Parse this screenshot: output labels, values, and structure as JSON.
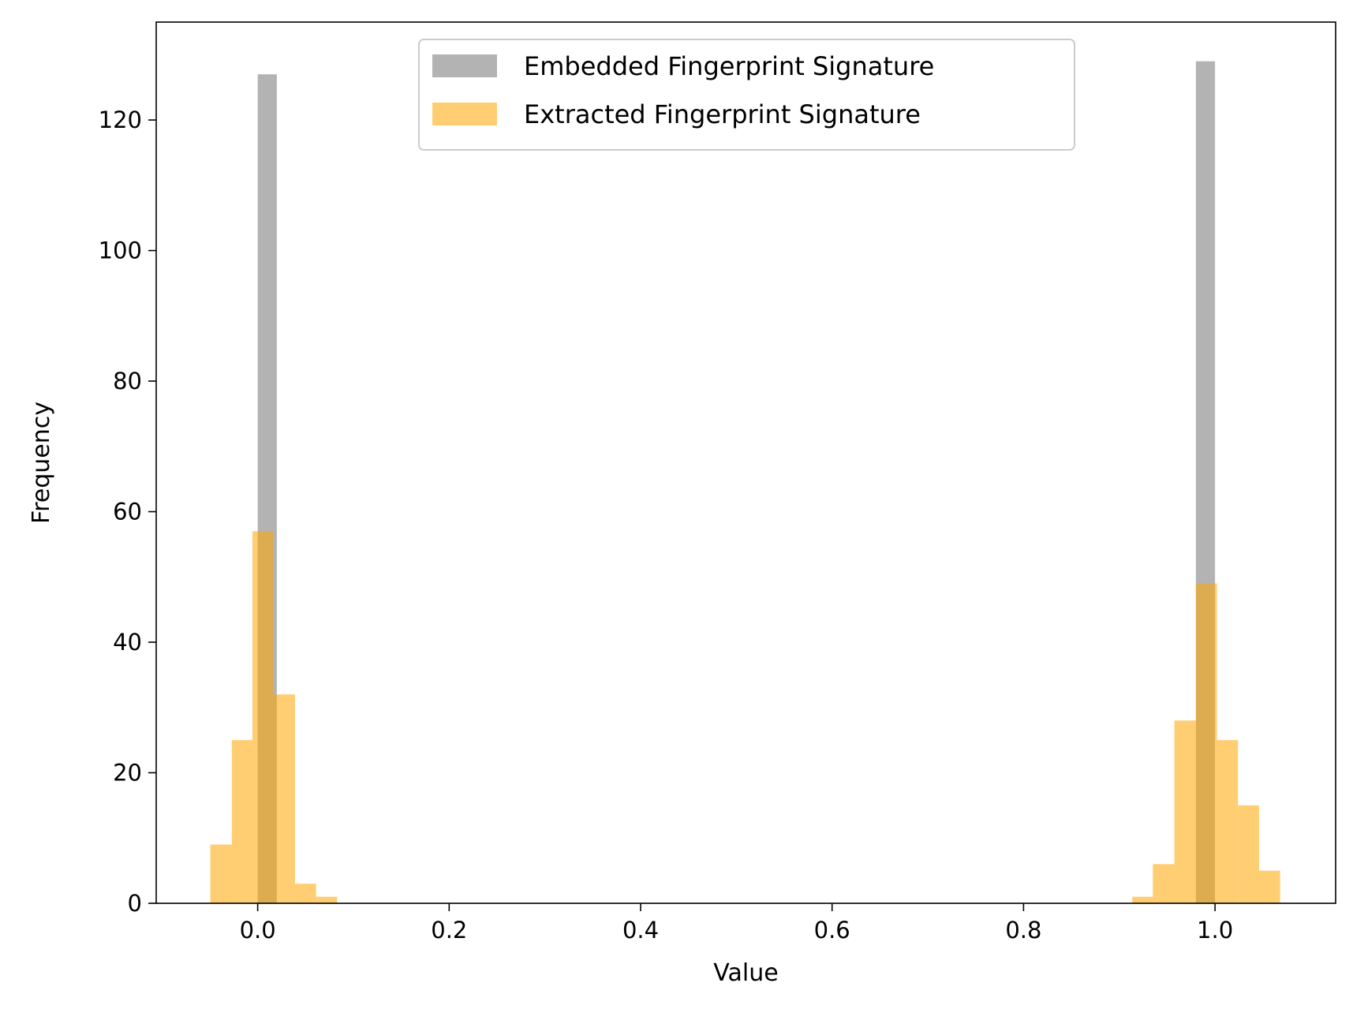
{
  "chart_data": {
    "type": "bar",
    "xlabel": "Value",
    "ylabel": "Frequency",
    "xlim": [
      -0.106,
      1.126
    ],
    "ylim": [
      0,
      135
    ],
    "x_ticks": [
      0.0,
      0.2,
      0.4,
      0.6,
      0.8,
      1.0
    ],
    "x_tick_labels": [
      "0.0",
      "0.2",
      "0.4",
      "0.6",
      "0.8",
      "1.0"
    ],
    "y_ticks": [
      0,
      20,
      40,
      60,
      80,
      100,
      120
    ],
    "y_tick_labels": [
      "0",
      "20",
      "40",
      "60",
      "80",
      "100",
      "120"
    ],
    "grid": false,
    "legend_position": "top-center",
    "series": [
      {
        "name": "Embedded Fingerprint Signature",
        "color": "#808080",
        "opacity": 0.6,
        "bins": [
          {
            "x0": 0.0,
            "x1": 0.02,
            "count": 127
          },
          {
            "x0": 0.98,
            "x1": 1.0,
            "count": 129
          }
        ]
      },
      {
        "name": "Extracted Fingerprint Signature",
        "color": "#FFA500",
        "opacity": 0.55,
        "bins": [
          {
            "x0": -0.0495,
            "x1": -0.027,
            "count": 9
          },
          {
            "x0": -0.027,
            "x1": -0.0055,
            "count": 25
          },
          {
            "x0": -0.0055,
            "x1": 0.0165,
            "count": 57
          },
          {
            "x0": 0.0165,
            "x1": 0.039,
            "count": 32
          },
          {
            "x0": 0.039,
            "x1": 0.061,
            "count": 3
          },
          {
            "x0": 0.061,
            "x1": 0.083,
            "count": 1
          },
          {
            "x0": 0.9135,
            "x1": 0.935,
            "count": 1
          },
          {
            "x0": 0.935,
            "x1": 0.9575,
            "count": 6
          },
          {
            "x0": 0.9575,
            "x1": 0.98,
            "count": 28
          },
          {
            "x0": 0.98,
            "x1": 1.002,
            "count": 49
          },
          {
            "x0": 1.002,
            "x1": 1.024,
            "count": 25
          },
          {
            "x0": 1.024,
            "x1": 1.046,
            "count": 15
          },
          {
            "x0": 1.046,
            "x1": 1.068,
            "count": 5
          }
        ]
      }
    ]
  }
}
